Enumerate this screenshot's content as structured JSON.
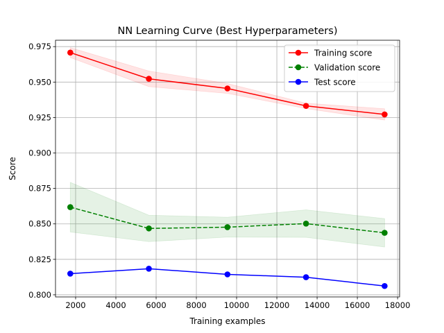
{
  "chart_data": {
    "type": "line",
    "title": "NN Learning Curve (Best Hyperparameters)",
    "xlabel": "Training examples",
    "ylabel": "Score",
    "xlim": [
      1000,
      18100
    ],
    "ylim": [
      0.7985,
      0.9795
    ],
    "xticks": [
      2000,
      4000,
      6000,
      8000,
      10000,
      12000,
      14000,
      16000,
      18000
    ],
    "yticks": [
      0.8,
      0.825,
      0.85,
      0.875,
      0.9,
      0.925,
      0.95,
      0.975
    ],
    "xtick_labels": [
      "2000",
      "4000",
      "6000",
      "8000",
      "10000",
      "12000",
      "14000",
      "16000",
      "18000"
    ],
    "ytick_labels": [
      "0.800",
      "0.825",
      "0.850",
      "0.875",
      "0.900",
      "0.925",
      "0.950",
      "0.975"
    ],
    "grid": true,
    "legend_position": "top-right",
    "x": [
      1735,
      5640,
      9545,
      13450,
      17355
    ],
    "series": [
      {
        "name": "Training score",
        "color": "#ff0000",
        "linestyle": "solid",
        "values": [
          0.9708,
          0.9523,
          0.9455,
          0.9332,
          0.9272
        ],
        "band_lower": [
          0.9673,
          0.9468,
          0.942,
          0.9313,
          0.9232
        ],
        "band_upper": [
          0.9743,
          0.9578,
          0.949,
          0.9351,
          0.9312
        ]
      },
      {
        "name": "Validation score",
        "color": "#008000",
        "linestyle": "dashed",
        "values": [
          0.8618,
          0.8468,
          0.8477,
          0.8502,
          0.8437
        ],
        "band_lower": [
          0.8443,
          0.8375,
          0.8407,
          0.8405,
          0.8337
        ],
        "band_upper": [
          0.8793,
          0.8561,
          0.8547,
          0.8599,
          0.8537
        ]
      },
      {
        "name": "Test score",
        "color": "#0000ff",
        "linestyle": "solid",
        "values": [
          0.8149,
          0.8184,
          0.8144,
          0.8124,
          0.8062
        ]
      }
    ]
  }
}
